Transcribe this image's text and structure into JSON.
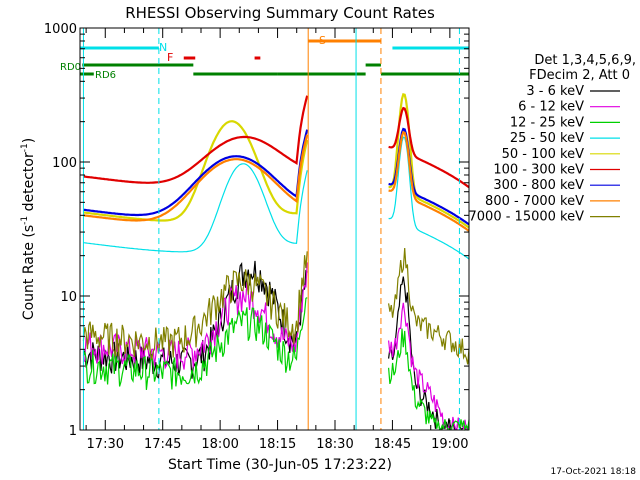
{
  "chart_data": {
    "type": "line",
    "title": "RHESSI Observing Summary Count Rates",
    "xlabel": "Start Time (30-Jun-05 17:23:22)",
    "ylabel": "Count Rate (s",
    "ylabel_sup": "-1",
    "ylabel_tail": " detector",
    "ylabel_close": ")",
    "y_scale": "log",
    "ylim": [
      1,
      1000
    ],
    "xlim_min": [
      23.4,
      125.0
    ],
    "y_ticks": [
      "1",
      "10",
      "100",
      "1000"
    ],
    "x_ticks": [
      "17:30",
      "17:45",
      "18:00",
      "18:15",
      "18:30",
      "18:45",
      "19:00"
    ],
    "x_tick_min": [
      30,
      45,
      60,
      75,
      90,
      105,
      120
    ],
    "legend_header": [
      "Det 1,3,4,5,6,9,",
      "FDecim 2, Att 0"
    ],
    "legend_position": "right",
    "series": [
      {
        "name": "3 - 6 keV",
        "color": "#000000"
      },
      {
        "name": "6 - 12 keV",
        "color": "#e000e0"
      },
      {
        "name": "12 - 25 keV",
        "color": "#00d000"
      },
      {
        "name": "25 - 50 keV",
        "color": "#00e0e8"
      },
      {
        "name": "50 - 100 keV",
        "color": "#d8d800"
      },
      {
        "name": "100 - 300 keV",
        "color": "#e00000"
      },
      {
        "name": "300 - 800 keV",
        "color": "#0000e0"
      },
      {
        "name": "800 - 7000 keV",
        "color": "#ff8000"
      },
      {
        "name": "7000 - 15000 keV",
        "color": "#808000"
      }
    ],
    "flag_labels": {
      "night": "N",
      "flare": "F",
      "saa": "S",
      "rd0": "RD0",
      "rd6": "RD6"
    },
    "flag_colors": {
      "night": "#00e0e8",
      "flare": "#e00000",
      "saa": "#ff8000",
      "decim": "#008000"
    },
    "flags": {
      "night": [
        [
          23.4,
          44.0
        ],
        [
          105.0,
          125.0
        ]
      ],
      "flare": [
        [
          50.5,
          53.5
        ],
        [
          69.0,
          70.5
        ]
      ],
      "saa": [
        [
          83.0,
          102.0
        ]
      ],
      "rd0": [
        [
          24.0,
          53.0
        ],
        [
          98.0,
          102.0
        ]
      ],
      "rd6": [
        [
          23.4,
          27.0
        ],
        [
          53.0,
          75.0
        ],
        [
          75.0,
          98.0
        ],
        [
          102.0,
          125.0
        ]
      ]
    },
    "orbit_lines": [
      {
        "min": 24.3,
        "style": "solid",
        "color": "#00e0e8"
      },
      {
        "min": 44.0,
        "style": "dashed",
        "color": "#00e0e8"
      },
      {
        "min": 83.0,
        "style": "solid",
        "color": "#ff8000"
      },
      {
        "min": 95.5,
        "style": "solid",
        "color": "#00e0e8"
      },
      {
        "min": 102.0,
        "style": "dashed",
        "color": "#ff8000"
      },
      {
        "min": 122.5,
        "style": "dashed",
        "color": "#00e0e8"
      }
    ],
    "segments": [
      [
        24.3,
        83.0
      ],
      [
        104.0,
        125.0
      ]
    ]
  },
  "footer": {
    "date": "17-Oct-2021 18:18"
  }
}
